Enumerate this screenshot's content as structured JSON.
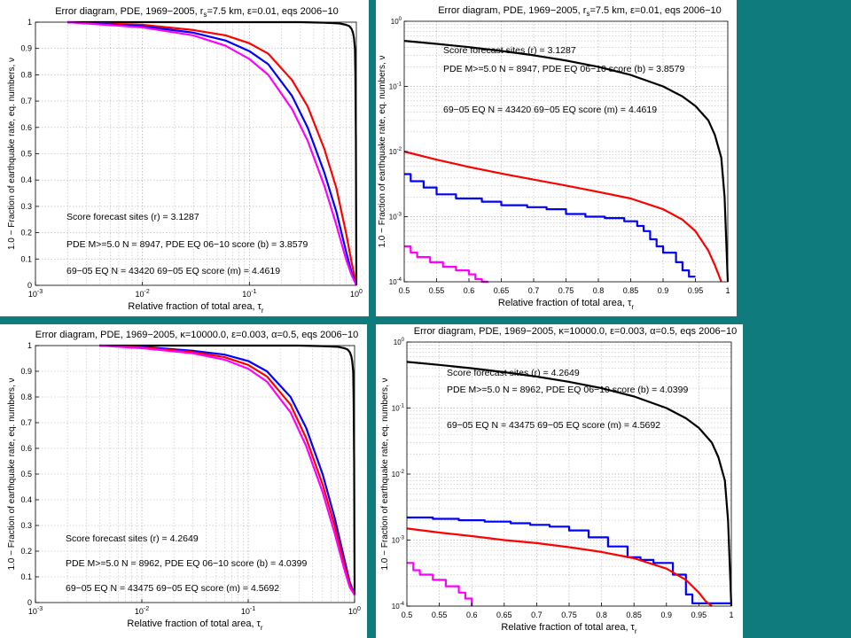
{
  "chart_data": [
    {
      "type": "line",
      "title": "Error diagram, PDE, 1969−2005, r_s=7.5 km, ε=0.01, eqs 2006−10",
      "title_main": "Error diagram, PDE, 1969−2005, r",
      "title_sub": "s",
      "title_tail": "=7.5 km, ε=0.01, eqs 2006−10",
      "xlabel_main": "Relative fraction of total area, τ",
      "xlabel_sub": "r",
      "ylabel": "1.0 − Fraction of earthquake rate, eq. numbers, ν",
      "xscale": "log",
      "yscale": "linear",
      "xlim": [
        0.001,
        1
      ],
      "ylim": [
        0,
        1
      ],
      "x_ticks": [
        "10-3",
        "10-2",
        "10-1",
        "10"
      ],
      "y_ticks": [
        "0",
        "0.1",
        "0.2",
        "0.3",
        "0.4",
        "0.5",
        "0.6",
        "0.7",
        "0.8",
        "0.9",
        "1"
      ],
      "grid": true,
      "annotations": [
        "Score forecast sites (r) = 3.1287",
        "PDE M>=5.0 N = 8947,  PDE EQ 06−10 score (b) = 3.8579",
        "69−05 EQ N = 43420  69−05 EQ score (m) = 4.4619"
      ],
      "series": [
        {
          "color": "#000000",
          "x": [
            0.002,
            0.1,
            0.3,
            0.5,
            0.7,
            0.8,
            0.86,
            0.9,
            0.93,
            0.95,
            0.97,
            0.98,
            0.99,
            1.0
          ],
          "y": [
            1,
            1,
            1,
            0.998,
            0.995,
            0.99,
            0.985,
            0.975,
            0.96,
            0.94,
            0.9,
            0.8,
            0.55,
            0
          ]
        },
        {
          "color": "#ff0000",
          "x": [
            0.002,
            0.01,
            0.03,
            0.06,
            0.1,
            0.15,
            0.25,
            0.35,
            0.5,
            0.65,
            0.8,
            0.9,
            1.0
          ],
          "y": [
            1,
            0.99,
            0.97,
            0.95,
            0.92,
            0.88,
            0.78,
            0.68,
            0.52,
            0.37,
            0.2,
            0.09,
            0
          ]
        },
        {
          "color": "#0000ff",
          "x": [
            0.002,
            0.01,
            0.03,
            0.06,
            0.1,
            0.15,
            0.25,
            0.35,
            0.5,
            0.65,
            0.8,
            0.9,
            1.0
          ],
          "y": [
            1,
            0.985,
            0.96,
            0.93,
            0.89,
            0.84,
            0.72,
            0.6,
            0.43,
            0.28,
            0.13,
            0.05,
            0
          ]
        },
        {
          "color": "#ff00ff",
          "x": [
            0.002,
            0.01,
            0.03,
            0.06,
            0.1,
            0.15,
            0.25,
            0.35,
            0.5,
            0.65,
            0.8,
            0.9,
            1.0
          ],
          "y": [
            1,
            0.98,
            0.95,
            0.91,
            0.86,
            0.8,
            0.67,
            0.55,
            0.38,
            0.23,
            0.1,
            0.04,
            0
          ]
        }
      ]
    },
    {
      "type": "line",
      "title": "Error diagram, PDE, 1969−2005, r_s=7.5 km, ε=0.01, eqs 2006−10",
      "title_main": "Error diagram, PDE, 1969−2005, r",
      "title_sub": "s",
      "title_tail": "=7.5 km, ε=0.01, eqs 2006−10",
      "xlabel_main": "Relative fraction of total area, τ",
      "xlabel_sub": "r",
      "ylabel": "1.0 − Fraction of earthquake rate, eq. numbers, ν",
      "xscale": "linear",
      "yscale": "log",
      "xlim": [
        0.5,
        1
      ],
      "ylim": [
        0.0001,
        1
      ],
      "x_ticks": [
        "0.5",
        "0.55",
        "0.6",
        "0.65",
        "0.7",
        "0.75",
        "0.8",
        "0.85",
        "0.9",
        "0.95",
        "1"
      ],
      "y_ticks": [
        "10-4",
        "10-3",
        "10-2",
        "10-1",
        "10"
      ],
      "grid": true,
      "annotations": [
        "Score forecast sites (r) = 3.1287",
        "PDE M>=5.0 N = 8947,  PDE EQ 06−10 score (b) = 3.8579",
        "69−05 EQ N = 43420  69−05 EQ score (m) = 4.4619"
      ],
      "series": [
        {
          "color": "#000000",
          "x": [
            0.5,
            0.55,
            0.6,
            0.65,
            0.7,
            0.75,
            0.8,
            0.85,
            0.9,
            0.93,
            0.95,
            0.97,
            0.98,
            0.99,
            0.995,
            1.0
          ],
          "y": [
            0.5,
            0.45,
            0.4,
            0.35,
            0.3,
            0.25,
            0.2,
            0.15,
            0.1,
            0.07,
            0.05,
            0.03,
            0.018,
            0.008,
            0.002,
            0.0001
          ]
        },
        {
          "color": "#ff0000",
          "x": [
            0.5,
            0.55,
            0.6,
            0.65,
            0.7,
            0.75,
            0.8,
            0.85,
            0.9,
            0.93,
            0.95,
            0.97,
            0.98,
            0.99
          ],
          "y": [
            0.01,
            0.0075,
            0.0058,
            0.0046,
            0.0037,
            0.003,
            0.0024,
            0.0019,
            0.0013,
            0.0009,
            0.0006,
            0.0003,
            0.00018,
            0.0001
          ]
        },
        {
          "color": "#0000ff",
          "step": true,
          "x": [
            0.5,
            0.51,
            0.53,
            0.55,
            0.58,
            0.62,
            0.65,
            0.69,
            0.72,
            0.75,
            0.78,
            0.81,
            0.84,
            0.86,
            0.87,
            0.88,
            0.89,
            0.9,
            0.92,
            0.93,
            0.94,
            0.95
          ],
          "y": [
            0.0045,
            0.0035,
            0.0028,
            0.0022,
            0.0019,
            0.0017,
            0.0015,
            0.0014,
            0.0013,
            0.0011,
            0.001,
            0.00095,
            0.00085,
            0.00072,
            0.0006,
            0.00045,
            0.00035,
            0.00028,
            0.0002,
            0.00015,
            0.00012,
            0.00012
          ]
        },
        {
          "color": "#ff00ff",
          "step": true,
          "x": [
            0.5,
            0.51,
            0.52,
            0.54,
            0.56,
            0.58,
            0.6,
            0.61,
            0.62,
            0.63
          ],
          "y": [
            0.00035,
            0.00028,
            0.00024,
            0.0002,
            0.00017,
            0.00015,
            0.00013,
            0.00011,
            0.0001,
            0.0001
          ]
        }
      ]
    },
    {
      "type": "line",
      "title": "Error diagram, PDE, 1969−2005, κ=10000.0, ε=0.003, α=0.5, eqs 2006−10",
      "title_main": "Error diagram, PDE, 1969−2005, κ=10000.0, ε=0.003, α=0.5, eqs 2006−10",
      "title_sub": "",
      "title_tail": "",
      "xlabel_main": "Relative fraction of total area, τ",
      "xlabel_sub": "r",
      "ylabel": "1.0 − Fraction of earthquake rate, eq. numbers, ν",
      "xscale": "log",
      "yscale": "linear",
      "xlim": [
        0.001,
        1
      ],
      "ylim": [
        0,
        1
      ],
      "x_ticks": [
        "10-3",
        "10-2",
        "10-1",
        "10"
      ],
      "y_ticks": [
        "0",
        "0.1",
        "0.2",
        "0.3",
        "0.4",
        "0.5",
        "0.6",
        "0.7",
        "0.8",
        "0.9",
        "1"
      ],
      "grid": true,
      "annotations": [
        "Score forecast sites (r) = 4.2649",
        "PDE M>=5.0 N = 8962,  PDE EQ 06−10 score (b) = 4.0399",
        "69−05 EQ N = 43475  69−05 EQ score (m) = 4.5692"
      ],
      "series": [
        {
          "color": "#000000",
          "x": [
            0.004,
            0.1,
            0.3,
            0.5,
            0.7,
            0.8,
            0.86,
            0.9,
            0.93,
            0.95,
            0.97,
            0.98,
            0.99,
            1.0
          ],
          "y": [
            1,
            1,
            1,
            0.998,
            0.995,
            0.99,
            0.985,
            0.975,
            0.96,
            0.94,
            0.9,
            0.8,
            0.55,
            0.03
          ]
        },
        {
          "color": "#0000ff",
          "x": [
            0.004,
            0.01,
            0.03,
            0.06,
            0.1,
            0.15,
            0.25,
            0.35,
            0.5,
            0.65,
            0.8,
            0.9,
            1.0
          ],
          "y": [
            1,
            0.995,
            0.98,
            0.965,
            0.94,
            0.9,
            0.8,
            0.68,
            0.5,
            0.33,
            0.17,
            0.08,
            0.03
          ]
        },
        {
          "color": "#ff0000",
          "x": [
            0.004,
            0.01,
            0.03,
            0.06,
            0.1,
            0.15,
            0.25,
            0.35,
            0.5,
            0.65,
            0.8,
            0.9,
            1.0
          ],
          "y": [
            1,
            0.993,
            0.975,
            0.955,
            0.925,
            0.88,
            0.77,
            0.64,
            0.46,
            0.3,
            0.15,
            0.07,
            0.03
          ]
        },
        {
          "color": "#ff00ff",
          "x": [
            0.004,
            0.01,
            0.03,
            0.06,
            0.1,
            0.15,
            0.25,
            0.35,
            0.5,
            0.65,
            0.8,
            0.9,
            1.0
          ],
          "y": [
            1,
            0.99,
            0.97,
            0.945,
            0.91,
            0.86,
            0.74,
            0.61,
            0.43,
            0.27,
            0.13,
            0.06,
            0.03
          ]
        }
      ]
    },
    {
      "type": "line",
      "title": "Error diagram, PDE, 1969−2005, κ=10000.0, ε=0.003, α=0.5, eqs 2006−10",
      "title_main": "Error diagram, PDE, 1969−2005, κ=10000.0, ε=0.003, α=0.5, eqs 2006−10",
      "title_sub": "",
      "title_tail": "",
      "xlabel_main": "Relative fraction of total area, τ",
      "xlabel_sub": "r",
      "ylabel": "1.0 − Fraction of earthquake rate, eq. numbers, ν",
      "xscale": "linear",
      "yscale": "log",
      "xlim": [
        0.5,
        1
      ],
      "ylim": [
        0.0001,
        1
      ],
      "x_ticks": [
        "0.5",
        "0.55",
        "0.6",
        "0.65",
        "0.7",
        "0.75",
        "0.8",
        "0.85",
        "0.9",
        "0.95",
        "1"
      ],
      "y_ticks": [
        "10-4",
        "10-3",
        "10-2",
        "10-1",
        "10"
      ],
      "grid": true,
      "annotations": [
        "Score forecast sites (r) = 4.2649",
        "PDE M>=5.0 N = 8962,  PDE EQ 06−10 score (b) = 4.0399",
        "69−05 EQ N = 43475  69−05 EQ score (m) = 4.5692"
      ],
      "series": [
        {
          "color": "#000000",
          "x": [
            0.5,
            0.55,
            0.6,
            0.65,
            0.7,
            0.75,
            0.8,
            0.85,
            0.9,
            0.93,
            0.95,
            0.97,
            0.98,
            0.99,
            0.995,
            1.0
          ],
          "y": [
            0.5,
            0.45,
            0.4,
            0.35,
            0.3,
            0.25,
            0.2,
            0.15,
            0.1,
            0.07,
            0.05,
            0.03,
            0.018,
            0.008,
            0.002,
            0.0001
          ]
        },
        {
          "color": "#0000ff",
          "step": true,
          "x": [
            0.5,
            0.54,
            0.58,
            0.62,
            0.66,
            0.69,
            0.72,
            0.75,
            0.78,
            0.81,
            0.84,
            0.86,
            0.88,
            0.91,
            0.93,
            0.94,
            0.97,
            1.0
          ],
          "y": [
            0.0022,
            0.0021,
            0.002,
            0.0019,
            0.0018,
            0.0017,
            0.0016,
            0.0014,
            0.0011,
            0.0008,
            0.00055,
            0.0005,
            0.00045,
            0.0003,
            0.00015,
            0.00011,
            0.00011,
            0.00011
          ]
        },
        {
          "color": "#ff0000",
          "x": [
            0.5,
            0.55,
            0.6,
            0.65,
            0.7,
            0.75,
            0.8,
            0.85,
            0.9,
            0.93,
            0.95,
            0.96,
            0.97
          ],
          "y": [
            0.0015,
            0.0013,
            0.00115,
            0.001,
            0.0009,
            0.00078,
            0.00066,
            0.00053,
            0.00037,
            0.00025,
            0.00016,
            0.00012,
            0.0001
          ]
        },
        {
          "color": "#ff00ff",
          "step": true,
          "x": [
            0.5,
            0.51,
            0.52,
            0.54,
            0.56,
            0.58,
            0.59,
            0.6
          ],
          "y": [
            0.00045,
            0.00035,
            0.0003,
            0.00025,
            0.0002,
            0.00016,
            0.00013,
            0.0001
          ]
        }
      ]
    }
  ]
}
